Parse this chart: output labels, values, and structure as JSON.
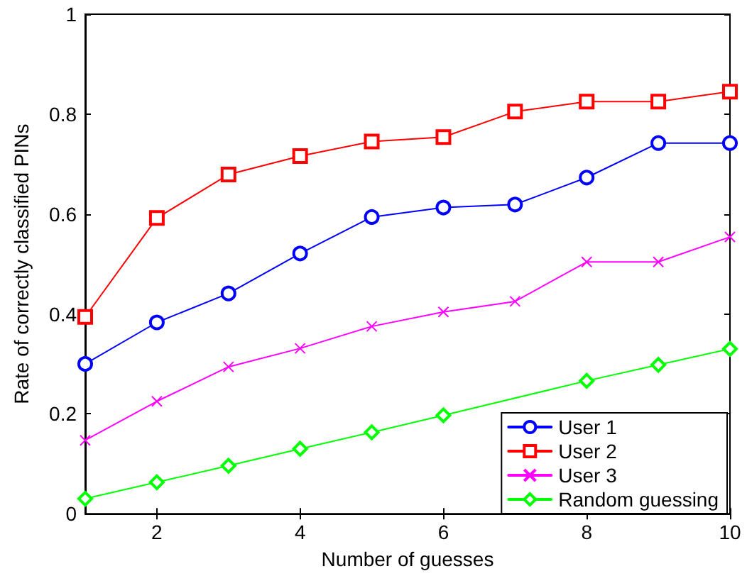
{
  "chart_data": {
    "type": "line",
    "xlabel": "Number of guesses",
    "ylabel": "Rate of correctly classified PINs",
    "x": [
      1,
      2,
      3,
      4,
      5,
      6,
      7,
      8,
      9,
      10
    ],
    "series": [
      {
        "name": "User 1",
        "color": "#0000ff",
        "marker": "circle",
        "values": [
          0.3,
          0.383,
          0.441,
          0.521,
          0.594,
          0.613,
          0.619,
          0.673,
          0.742,
          0.742
        ]
      },
      {
        "name": "User 2",
        "color": "#ff0000",
        "marker": "square",
        "values": [
          0.394,
          0.592,
          0.679,
          0.716,
          0.745,
          0.754,
          0.805,
          0.825,
          0.825,
          0.845
        ]
      },
      {
        "name": "User 3",
        "color": "#ff00ff",
        "marker": "cross",
        "values": [
          0.147,
          0.225,
          0.294,
          0.331,
          0.375,
          0.404,
          0.425,
          0.504,
          0.504,
          0.554
        ]
      },
      {
        "name": "Random guessing",
        "color": "#00ff00",
        "marker": "diamond",
        "values": [
          0.03,
          0.063,
          0.096,
          0.13,
          0.163,
          0.197,
          null,
          0.266,
          0.298,
          0.33
        ]
      }
    ],
    "xlim": [
      1,
      10
    ],
    "xticks": [
      2,
      4,
      6,
      8,
      10
    ],
    "ylim": [
      0,
      1
    ],
    "yticks": [
      0,
      0.2,
      0.4,
      0.6,
      0.8,
      1
    ],
    "grid": false,
    "legend": "bottom right"
  }
}
